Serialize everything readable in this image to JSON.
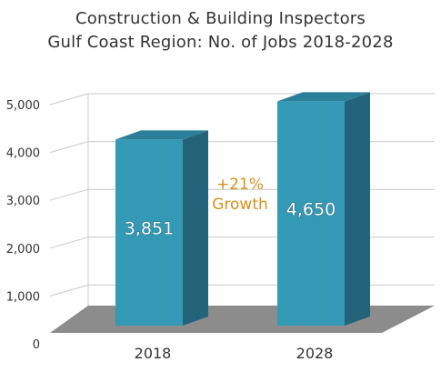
{
  "chart_data": {
    "type": "bar",
    "title": [
      "Construction & Building Inspectors",
      "Gulf Coast Region: No. of Jobs 2018-2028"
    ],
    "categories": [
      "2018",
      "2028"
    ],
    "values": [
      3851,
      4650
    ],
    "value_labels": [
      "3,851",
      "4,650"
    ],
    "y_ticks": [
      0,
      1000,
      2000,
      3000,
      4000,
      5000
    ],
    "y_tick_labels": [
      "0",
      "1,000",
      "2,000",
      "3,000",
      "4,000",
      "5,000"
    ],
    "ylim": [
      0,
      5000
    ],
    "grid": true,
    "three_d": true,
    "annotation": [
      "+21%",
      "Growth"
    ],
    "colors": {
      "bar_front": "#3399b5",
      "bar_side": "#24647a",
      "bar_top": "#2b7f98",
      "floor": "#8c8c8c",
      "grid": "#c8c8c8",
      "annotation": "#d9901b",
      "value_label": "#ffffff"
    }
  }
}
